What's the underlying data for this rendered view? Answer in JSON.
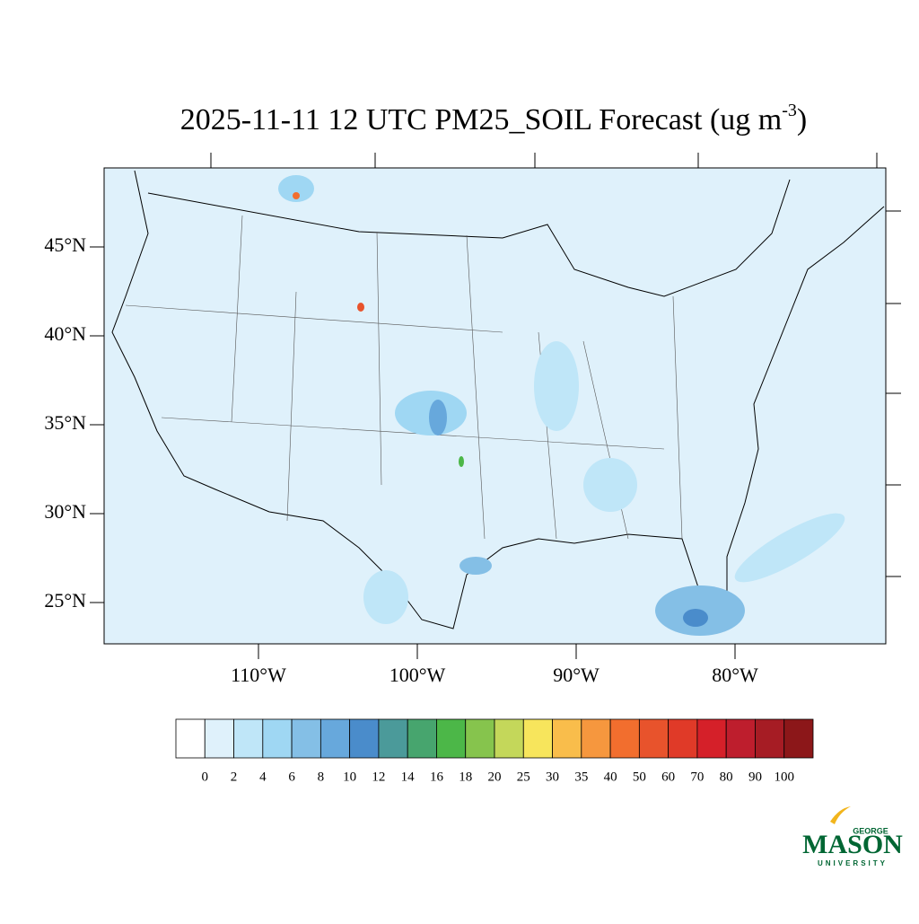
{
  "title": {
    "main": "2025-11-11 12 UTC PM25_SOIL Forecast (ug m",
    "superscript": "-3",
    "end": ")"
  },
  "lat_ticks": [
    {
      "value": 45,
      "label": "45°N"
    },
    {
      "value": 40,
      "label": "40°N"
    },
    {
      "value": 35,
      "label": "35°N"
    },
    {
      "value": 30,
      "label": "30°N"
    },
    {
      "value": 25,
      "label": "25°N"
    }
  ],
  "lon_ticks": [
    {
      "value": -110,
      "label": "110°W"
    },
    {
      "value": -100,
      "label": "100°W"
    },
    {
      "value": -90,
      "label": "90°W"
    },
    {
      "value": -80,
      "label": "80°W"
    }
  ],
  "colorbar": {
    "levels": [
      0,
      2,
      4,
      6,
      8,
      10,
      12,
      14,
      16,
      18,
      20,
      25,
      30,
      35,
      40,
      50,
      60,
      70,
      80,
      90,
      100
    ],
    "colors": [
      "#ffffff",
      "#dff1fb",
      "#bfe6f8",
      "#9fd7f3",
      "#84bfe6",
      "#67a8dc",
      "#4a8ccb",
      "#4b9a9a",
      "#47a56e",
      "#4cb748",
      "#86c44d",
      "#c4d75a",
      "#f7e55c",
      "#f9bd4b",
      "#f6973e",
      "#f26e2e",
      "#e8532c",
      "#e03a28",
      "#d52029",
      "#be1e2d",
      "#a61c24",
      "#8c1719"
    ]
  },
  "logo": {
    "top": "GEORGE",
    "main": "MASON",
    "bottom": "UNIVERSITY"
  }
}
